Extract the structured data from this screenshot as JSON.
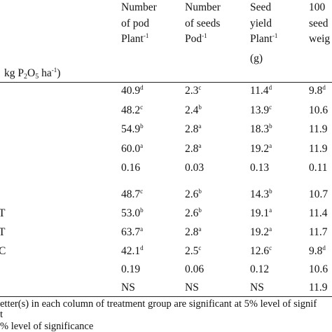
{
  "header": {
    "col1": [
      "Number",
      "of pod",
      "Plant"
    ],
    "col1_sup": "-1",
    "col2": [
      "Number",
      "of seeds",
      "Pod"
    ],
    "col2_sup": "-1",
    "col3": [
      "Seed",
      "yield",
      "Plant",
      "(g)"
    ],
    "col3_sup": "-1",
    "col4": [
      "100",
      "seed",
      "weig"
    ],
    "unit_label": {
      "pre": "kg P",
      "sub1": "2",
      "mid": "O",
      "sub2": "5",
      "post": " ha",
      "sup": "-1",
      "close": ")"
    }
  },
  "group1": [
    {
      "pod": "40.9",
      "pod_l": "d",
      "seeds": "2.3",
      "seeds_l": "c",
      "yield": "11.4",
      "yield_l": "d",
      "w": "9.8",
      "w_l": "d"
    },
    {
      "pod": "48.2",
      "pod_l": "c",
      "seeds": "2.4",
      "seeds_l": "b",
      "yield": "13.9",
      "yield_l": "c",
      "w": "10.6",
      "w_l": ""
    },
    {
      "pod": "54.9",
      "pod_l": "b",
      "seeds": "2.8",
      "seeds_l": "a",
      "yield": "18.3",
      "yield_l": "b",
      "w": "11.9",
      "w_l": ""
    },
    {
      "pod": "60.0",
      "pod_l": "a",
      "seeds": "2.8",
      "seeds_l": "a",
      "yield": "19.2",
      "yield_l": "a",
      "w": "11.9",
      "w_l": ""
    },
    {
      "pod": "0.16",
      "pod_l": "",
      "seeds": "0.03",
      "seeds_l": "",
      "yield": "0.13",
      "yield_l": "",
      "w": "0.11",
      "w_l": ""
    }
  ],
  "group2": [
    {
      "lbl": "",
      "pod": "48.7",
      "pod_l": "c",
      "seeds": "2.6",
      "seeds_l": "b",
      "yield": "14.3",
      "yield_l": "b",
      "w": "10.7",
      "w_l": ""
    },
    {
      "lbl": "T",
      "pod": "53.0",
      "pod_l": "b",
      "seeds": "2.6",
      "seeds_l": "b",
      "yield": "19.1",
      "yield_l": "a",
      "w": "11.4",
      "w_l": ""
    },
    {
      "lbl": "T",
      "pod": "63.7",
      "pod_l": "a",
      "seeds": "2.8",
      "seeds_l": "a",
      "yield": "19.2",
      "yield_l": "a",
      "w": "11.7",
      "w_l": ""
    },
    {
      "lbl": "C",
      "pod": "42.1",
      "pod_l": "d",
      "seeds": "2.5",
      "seeds_l": "c",
      "yield": "12.6",
      "yield_l": "c",
      "w": "9.8",
      "w_l": "d"
    },
    {
      "lbl": "",
      "pod": "0.19",
      "pod_l": "",
      "seeds": "0.06",
      "seeds_l": "",
      "yield": "0.12",
      "yield_l": "",
      "w": "10.6",
      "w_l": ""
    },
    {
      "lbl": "",
      "pod": "NS",
      "pod_l": "",
      "seeds": "NS",
      "seeds_l": "",
      "yield": "NS",
      "yield_l": "",
      "w": "11.9",
      "w_l": ""
    }
  ],
  "footnotes": [
    "etter(s) in each column of treatment group are significant at 5% level of signif",
    "t",
    "% level of significance"
  ]
}
